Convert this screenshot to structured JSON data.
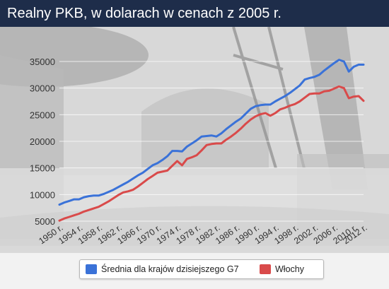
{
  "header": {
    "title": "Realny PKB, w dolarach w cenach z 2005 r."
  },
  "colors": {
    "header_bg": "#1e2d4a",
    "series_g7": "#3a72d8",
    "series_italy": "#d94a4a"
  },
  "chart_data": {
    "type": "line",
    "title": "Realny PKB, w dolarach w cenach z 2005 r.",
    "xlabel": "",
    "ylabel": "",
    "xlim": [
      1950,
      2012
    ],
    "ylim": [
      5000,
      35000
    ],
    "yticks": [
      5000,
      10000,
      15000,
      20000,
      25000,
      30000,
      35000
    ],
    "ytick_labels": [
      "5000",
      "10000",
      "15000",
      "20000",
      "25000",
      "30000",
      "35000"
    ],
    "xticks": [
      1950,
      1954,
      1958,
      1962,
      1966,
      1970,
      1974,
      1978,
      1982,
      1986,
      1990,
      1994,
      1998,
      2002,
      2006,
      2010,
      2012
    ],
    "xtick_labels": [
      "1950 r.",
      "1954 r.",
      "1958 r.",
      "1962 r.",
      "1966 r.",
      "1970 r.",
      "1974 r.",
      "1978 r.",
      "1982 r.",
      "1986 r.",
      "1990 r.",
      "1994 r.",
      "1998 r.",
      "2002 r.",
      "2006 r.",
      "2010 r.",
      "2012 r."
    ],
    "grid": true,
    "legend_position": "bottom",
    "x": [
      1950,
      1951,
      1952,
      1953,
      1954,
      1955,
      1956,
      1957,
      1958,
      1959,
      1960,
      1961,
      1962,
      1963,
      1964,
      1965,
      1966,
      1967,
      1968,
      1969,
      1970,
      1971,
      1972,
      1973,
      1974,
      1975,
      1976,
      1977,
      1978,
      1979,
      1980,
      1981,
      1982,
      1983,
      1984,
      1985,
      1986,
      1987,
      1988,
      1989,
      1990,
      1991,
      1992,
      1993,
      1994,
      1995,
      1996,
      1997,
      1998,
      1999,
      2000,
      2001,
      2002,
      2003,
      2004,
      2005,
      2006,
      2007,
      2008,
      2009,
      2010,
      2011,
      2012
    ],
    "series": [
      {
        "name": "Średnia dla krajów dzisiejszego G7",
        "values": [
          8100,
          8500,
          8800,
          9100,
          9100,
          9500,
          9700,
          9800,
          9800,
          10100,
          10500,
          10900,
          11400,
          11900,
          12400,
          13000,
          13600,
          14100,
          14800,
          15500,
          15900,
          16500,
          17200,
          18200,
          18200,
          18100,
          19000,
          19600,
          20200,
          20900,
          21000,
          21100,
          20900,
          21500,
          22300,
          23000,
          23700,
          24300,
          25200,
          26100,
          26600,
          26800,
          26900,
          26900,
          27500,
          28000,
          28500,
          29100,
          29800,
          30500,
          31600,
          31900,
          32100,
          32500,
          33300,
          34000,
          34700,
          35300,
          35000,
          33100,
          34000,
          34400,
          34400
        ],
        "color": "#3a72d8"
      },
      {
        "name": "Włochy",
        "values": [
          5100,
          5500,
          5800,
          6100,
          6400,
          6800,
          7100,
          7400,
          7700,
          8200,
          8700,
          9300,
          9900,
          10400,
          10600,
          10900,
          11500,
          12200,
          12900,
          13500,
          14100,
          14300,
          14500,
          15400,
          16300,
          15500,
          16700,
          17000,
          17400,
          18300,
          19300,
          19500,
          19600,
          19600,
          20300,
          20900,
          21600,
          22400,
          23300,
          24100,
          24700,
          25100,
          25300,
          24800,
          25300,
          26000,
          26300,
          26700,
          27000,
          27500,
          28200,
          28900,
          29000,
          29000,
          29400,
          29500,
          29900,
          30300,
          30000,
          28100,
          28400,
          28500,
          27600
        ],
        "color": "#d94a4a"
      }
    ]
  }
}
